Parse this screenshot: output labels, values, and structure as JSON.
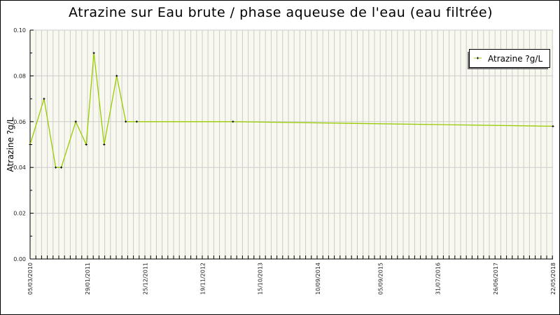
{
  "chart_data": {
    "type": "line",
    "title": "Atrazine sur Eau brute / phase aqueuse de l'eau (eau filtrée)",
    "ylabel": "Atrazine ?g/L",
    "xlabel": "",
    "ylim": [
      0,
      0.1
    ],
    "yticks": [
      "0.00",
      "0.02",
      "0.04",
      "0.06",
      "0.08",
      "0.10"
    ],
    "xlim": [
      "05/03/2010",
      "22/05/2018"
    ],
    "xticks": [
      "05/03/2010",
      "29/01/2011",
      "25/12/2011",
      "19/11/2012",
      "15/10/2013",
      "10/09/2014",
      "05/09/2015",
      "31/07/2016",
      "26/06/2017",
      "22/05/2018"
    ],
    "grid": true,
    "legend_position": "top-right",
    "series": [
      {
        "name": "Atrazine ?g/L",
        "color": "#99cc00",
        "x": [
          "05/03/2010",
          "24/05/2010",
          "30/07/2010",
          "31/08/2010",
          "22/11/2010",
          "21/01/2011",
          "06/03/2011",
          "04/05/2011",
          "15/07/2011",
          "05/09/2011",
          "07/11/2011",
          "12/05/2013",
          "22/05/2018"
        ],
        "y": [
          0.05,
          0.07,
          0.04,
          0.04,
          0.06,
          0.05,
          0.09,
          0.05,
          0.08,
          0.06,
          0.06,
          0.06,
          0.058
        ]
      }
    ],
    "colors": {
      "plot_background": "#f8f8ee",
      "grid": "#cccccc"
    }
  }
}
